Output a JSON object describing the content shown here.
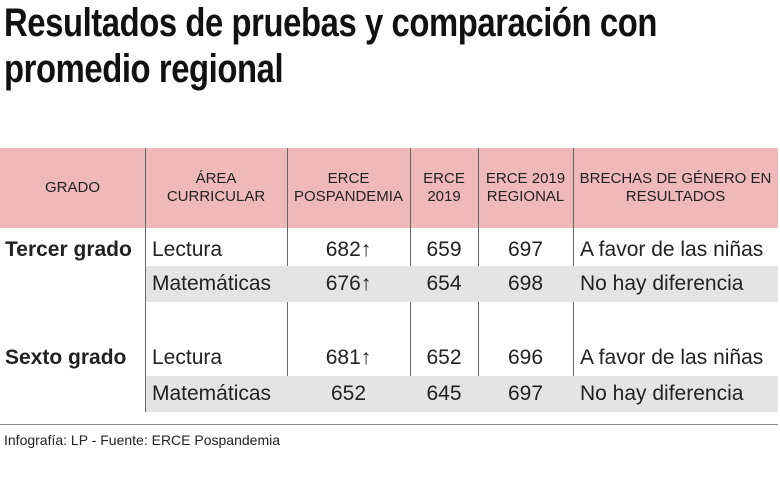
{
  "header": {
    "title": "Resultados de pruebas y comparación con promedio regional"
  },
  "table": {
    "columns": [
      "GRADO",
      "ÁREA CURRICULAR",
      "ERCE POSPANDEMIA",
      "ERCE 2019",
      "ERCE 2019 REGIONAL",
      "BRECHAS DE GÉNERO EN RESULTADOS"
    ],
    "groups": [
      {
        "grade": "Tercer grado",
        "rows": [
          {
            "area": "Lectura",
            "pospandemia": "682↑",
            "erce2019": "659",
            "regional": "697",
            "brecha": "A favor de las niñas"
          },
          {
            "area": "Matemáticas",
            "pospandemia": "676↑",
            "erce2019": "654",
            "regional": "698",
            "brecha": "No hay diferencia"
          }
        ]
      },
      {
        "grade": "Sexto grado",
        "rows": [
          {
            "area": "Lectura",
            "pospandemia": "681↑",
            "erce2019": "652",
            "regional": "696",
            "brecha": "A favor de las niñas"
          },
          {
            "area": "Matemáticas",
            "pospandemia": "652",
            "erce2019": "645",
            "regional": "697",
            "brecha": "No hay diferencia"
          }
        ]
      }
    ]
  },
  "footer": {
    "source": "Infografía: LP - Fuente: ERCE Pospandemia"
  }
}
